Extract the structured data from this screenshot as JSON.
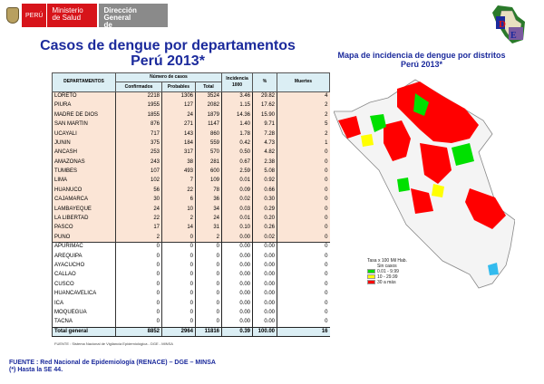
{
  "header": {
    "peru": "PERÚ",
    "ministry_line1": "Ministerio",
    "ministry_line2": "de Salud",
    "dge_line1": "Dirección General",
    "dge_line2": "de Epidemiología"
  },
  "title_line1": "Casos de dengue por departamentos",
  "title_line2": "Perú 2013*",
  "map": {
    "title_line1": "Mapa de incidencia de dengue por distritos",
    "title_line2": "Perú 2013*",
    "legend_title": "Tasa x 100 Mil Hab.",
    "legend": [
      {
        "label": "Sin casos",
        "color": "#ffffff"
      },
      {
        "label": "0.01 - 9.99",
        "color": "#00e000"
      },
      {
        "label": "10 - 29.99",
        "color": "#ffff00"
      },
      {
        "label": "30 a más",
        "color": "#ff0000"
      }
    ]
  },
  "table": {
    "h_dept": "DEPARTAMENTOS",
    "h_cases": "Número de casos",
    "h_conf": "Confirmados",
    "h_prob": "Probables",
    "h_total": "Total",
    "h_inc": "Incidencia 1000",
    "h_pct": "%",
    "h_deaths": "Muertes",
    "rows": [
      [
        "LORETO",
        "2218",
        "1306",
        "3524",
        "3.46",
        "29.82",
        "4"
      ],
      [
        "PIURA",
        "1955",
        "127",
        "2082",
        "1.15",
        "17.62",
        "2"
      ],
      [
        "MADRE DE DIOS",
        "1855",
        "24",
        "1879",
        "14.36",
        "15.90",
        "2"
      ],
      [
        "SAN MARTIN",
        "876",
        "271",
        "1147",
        "1.40",
        "9.71",
        "5"
      ],
      [
        "UCAYALI",
        "717",
        "143",
        "860",
        "1.78",
        "7.28",
        "2"
      ],
      [
        "JUNIN",
        "375",
        "184",
        "559",
        "0.42",
        "4.73",
        "1"
      ],
      [
        "ANCASH",
        "253",
        "317",
        "570",
        "0.50",
        "4.82",
        "0"
      ],
      [
        "AMAZONAS",
        "243",
        "38",
        "281",
        "0.67",
        "2.38",
        "0"
      ],
      [
        "TUMBES",
        "107",
        "493",
        "600",
        "2.59",
        "5.08",
        "0"
      ],
      [
        "LIMA",
        "102",
        "7",
        "109",
        "0.01",
        "0.92",
        "0"
      ],
      [
        "HUANUCO",
        "56",
        "22",
        "78",
        "0.09",
        "0.66",
        "0"
      ],
      [
        "CAJAMARCA",
        "30",
        "6",
        "36",
        "0.02",
        "0.30",
        "0"
      ],
      [
        "LAMBAYEQUE",
        "24",
        "10",
        "34",
        "0.03",
        "0.29",
        "0"
      ],
      [
        "LA LIBERTAD",
        "22",
        "2",
        "24",
        "0.01",
        "0.20",
        "0"
      ],
      [
        "PASCO",
        "17",
        "14",
        "31",
        "0.10",
        "0.26",
        "0"
      ],
      [
        "PUNO",
        "2",
        "0",
        "2",
        "0.00",
        "0.02",
        "0"
      ],
      [
        "APURIMAC",
        "0",
        "0",
        "0",
        "0.00",
        "0.00",
        "0"
      ],
      [
        "AREQUIPA",
        "0",
        "0",
        "0",
        "0.00",
        "0.00",
        "0"
      ],
      [
        "AYACUCHO",
        "0",
        "0",
        "0",
        "0.00",
        "0.00",
        "0"
      ],
      [
        "CALLAO",
        "0",
        "0",
        "0",
        "0.00",
        "0.00",
        "0"
      ],
      [
        "CUSCO",
        "0",
        "0",
        "0",
        "0.00",
        "0.00",
        "0"
      ],
      [
        "HUANCAVELICA",
        "0",
        "0",
        "0",
        "0.00",
        "0.00",
        "0"
      ],
      [
        "ICA",
        "0",
        "0",
        "0",
        "0.00",
        "0.00",
        "0"
      ],
      [
        "MOQUEGUA",
        "0",
        "0",
        "0",
        "0.00",
        "0.00",
        "0"
      ],
      [
        "TACNA",
        "0",
        "0",
        "0",
        "0.00",
        "0.00",
        "0"
      ]
    ],
    "total": [
      "Total general",
      "8852",
      "2964",
      "11816",
      "0.39",
      "100.00",
      "16"
    ],
    "source": "FUENTE :  Sistema Nacional de Vigilancia Epidemiológica - DGE - MINSA"
  },
  "footer": {
    "line1": "FUENTE : Red Nacional de Epidemiología (RENACE) – DGE – MINSA",
    "line2": "(*) Hasta la SE 44."
  },
  "dge_logo_text": "DGE"
}
